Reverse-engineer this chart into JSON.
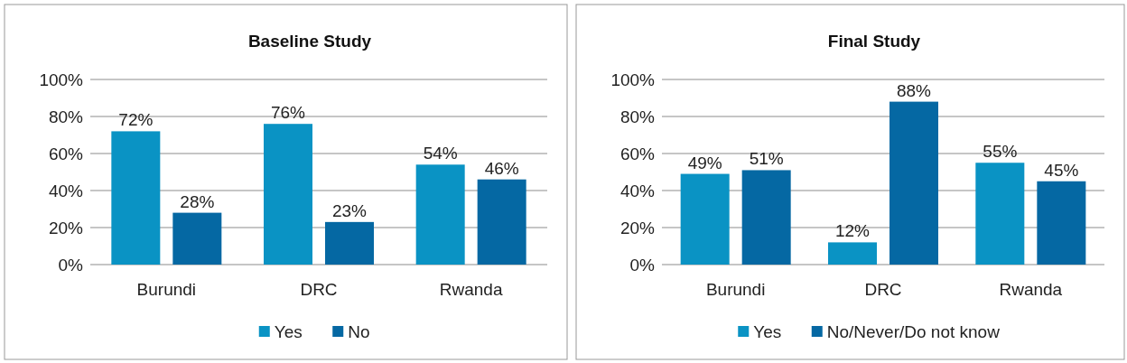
{
  "chart_data": [
    {
      "type": "bar",
      "title": "Baseline Study",
      "categories": [
        "Burundi",
        "DRC",
        "Rwanda"
      ],
      "series": [
        {
          "name": "Yes",
          "color": "#0a93c4",
          "values": [
            72,
            76,
            54
          ],
          "value_labels": [
            "72%",
            "76%",
            "54%"
          ]
        },
        {
          "name": "No",
          "color": "#0568a3",
          "values": [
            28,
            23,
            46
          ],
          "value_labels": [
            "28%",
            "23%",
            "46%"
          ]
        }
      ],
      "ylim": [
        0,
        100
      ],
      "yticks": [
        {
          "value": 0,
          "label": "0%"
        },
        {
          "value": 20,
          "label": "20%"
        },
        {
          "value": 40,
          "label": "40%"
        },
        {
          "value": 60,
          "label": "60%"
        },
        {
          "value": 80,
          "label": "80%"
        },
        {
          "value": 100,
          "label": "100%"
        }
      ],
      "grid": "y",
      "legend": "bottom"
    },
    {
      "type": "bar",
      "title": "Final Study",
      "categories": [
        "Burundi",
        "DRC",
        "Rwanda"
      ],
      "series": [
        {
          "name": "Yes",
          "color": "#0a93c4",
          "values": [
            49,
            12,
            55
          ],
          "value_labels": [
            "49%",
            "12%",
            "55%"
          ]
        },
        {
          "name": "No/Never/Do not know",
          "color": "#0568a3",
          "values": [
            51,
            88,
            45
          ],
          "value_labels": [
            "51%",
            "88%",
            "45%"
          ]
        }
      ],
      "ylim": [
        0,
        100
      ],
      "yticks": [
        {
          "value": 0,
          "label": "0%"
        },
        {
          "value": 20,
          "label": "20%"
        },
        {
          "value": 40,
          "label": "40%"
        },
        {
          "value": 60,
          "label": "60%"
        },
        {
          "value": 80,
          "label": "80%"
        },
        {
          "value": 100,
          "label": "100%"
        }
      ],
      "grid": "y",
      "legend": "bottom"
    }
  ]
}
